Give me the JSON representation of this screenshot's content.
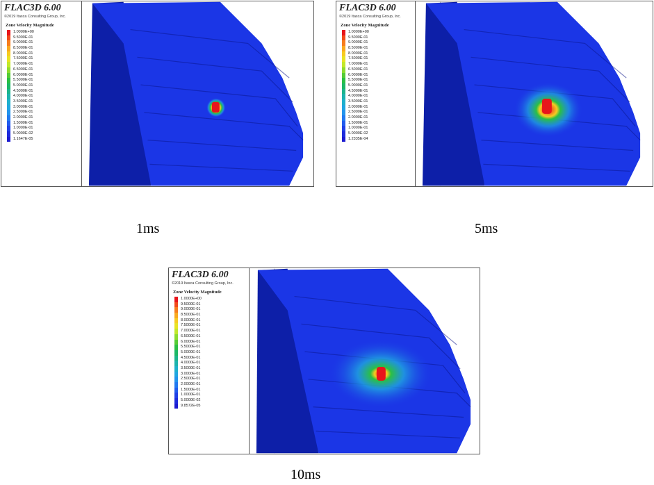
{
  "panels": [
    {
      "id": "p1",
      "title": "FLAC3D 6.00",
      "copyright": "©2019 Itasca Consulting Group, Inc.",
      "legend_title": "Zone Velocity Magnitude",
      "legend_labels": [
        "1.0000E+00",
        "9.5000E-01",
        "9.0000E-01",
        "8.5000E-01",
        "8.0000E-01",
        "7.5000E-01",
        "7.0000E-01",
        "6.5000E-01",
        "6.0000E-01",
        "5.5000E-01",
        "5.0000E-01",
        "4.5000E-01",
        "4.0000E-01",
        "3.5000E-01",
        "3.0000E-01",
        "2.5000E-01",
        "2.0000E-01",
        "1.5000E-01",
        "1.0000E-01",
        "5.0000E-02",
        "1.1647E-05"
      ],
      "caption": "1ms"
    },
    {
      "id": "p2",
      "title": "FLAC3D 6.00",
      "copyright": "©2019 Itasca Consulting Group, Inc.",
      "legend_title": "Zone Velocity Magnitude",
      "legend_labels": [
        "1.0000E+00",
        "9.5000E-01",
        "9.0000E-01",
        "8.5000E-01",
        "8.0000E-01",
        "7.5000E-01",
        "7.0000E-01",
        "6.5000E-01",
        "6.0000E-01",
        "5.5000E-01",
        "5.0000E-01",
        "4.5000E-01",
        "4.0000E-01",
        "3.5000E-01",
        "3.0000E-01",
        "2.5000E-01",
        "2.0000E-01",
        "1.5000E-01",
        "1.0000E-01",
        "5.0000E-02",
        "1.2335E-04"
      ],
      "caption": "5ms"
    },
    {
      "id": "p3",
      "title": "FLAC3D 6.00",
      "copyright": "©2019 Itasca Consulting Group, Inc.",
      "legend_title": "Zone Velocity Magnitude",
      "legend_labels": [
        "1.0000E+00",
        "9.5000E-01",
        "9.0000E-01",
        "8.5000E-01",
        "8.0000E-01",
        "7.5000E-01",
        "7.0000E-01",
        "6.5000E-01",
        "6.0000E-01",
        "5.5000E-01",
        "5.0000E-01",
        "4.5000E-01",
        "4.0000E-01",
        "3.5000E-01",
        "3.0000E-01",
        "2.5000E-01",
        "2.0000E-01",
        "1.5000E-01",
        "1.0000E-01",
        "5.0000E-02",
        "9.8572E-05"
      ],
      "caption": "10ms"
    }
  ],
  "legend_colors": [
    "#e8151b",
    "#f24a1a",
    "#f77d1c",
    "#f9a91e",
    "#f7cb21",
    "#e8e324",
    "#c2e82a",
    "#8ddc2f",
    "#55cc35",
    "#2bbf44",
    "#1cb866",
    "#1cb48c",
    "#1cb3ad",
    "#1eb0cc",
    "#20a6e0",
    "#2294ec",
    "#2279f0",
    "#215cee",
    "#2040e6",
    "#1e2bdc",
    "#1d1bd0"
  ],
  "colors": {
    "slope_face": "#1b36e6",
    "slope_side": "#0d1fa8",
    "slope_dark": "#0a148a",
    "hot_core": "#e8151b"
  }
}
